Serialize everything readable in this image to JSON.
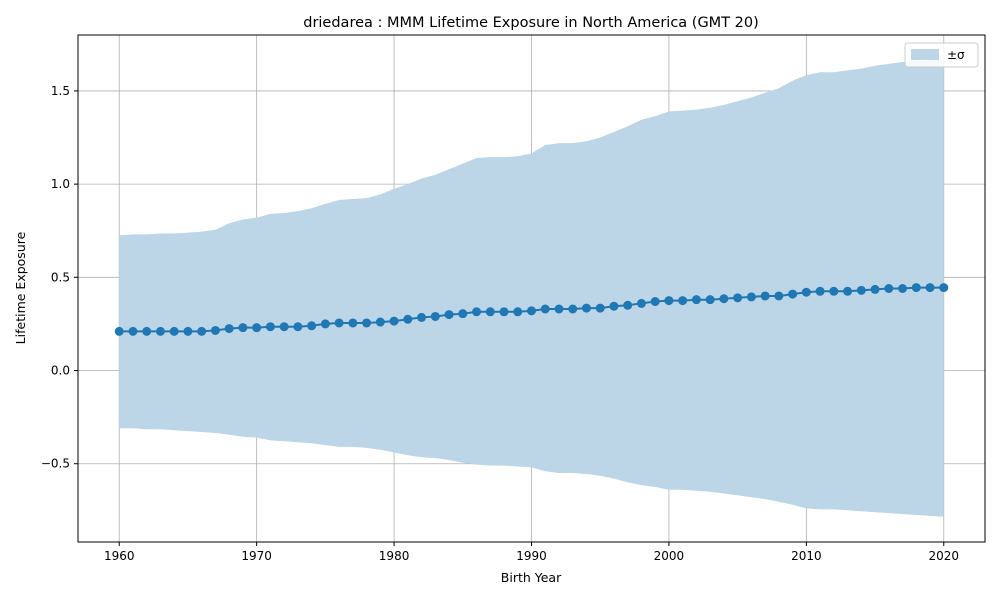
{
  "chart_data": {
    "type": "line",
    "title": "driedarea : MMM Lifetime Exposure in North America (GMT 20)",
    "xlabel": "Birth Year",
    "ylabel": "Lifetime Exposure",
    "xlim": [
      1957,
      2023
    ],
    "ylim": [
      -0.92,
      1.8
    ],
    "xticks": [
      1960,
      1970,
      1980,
      1990,
      2000,
      2010,
      2020
    ],
    "yticks": [
      -0.5,
      0.0,
      0.5,
      1.0,
      1.5
    ],
    "ytick_labels": [
      "−0.5",
      "0.0",
      "0.5",
      "1.0",
      "1.5"
    ],
    "grid": true,
    "legend_position": "top-right",
    "legend": [
      {
        "label": "±σ",
        "color": "#bcd6e8"
      }
    ],
    "colors": {
      "line": "#1f77b4",
      "band": "#bcd6e8",
      "grid": "#b0b0b0"
    },
    "series": [
      {
        "x": [
          1960,
          1961,
          1962,
          1963,
          1964,
          1965,
          1966,
          1967,
          1968,
          1969,
          1970,
          1971,
          1972,
          1973,
          1974,
          1975,
          1976,
          1977,
          1978,
          1979,
          1980,
          1981,
          1982,
          1983,
          1984,
          1985,
          1986,
          1987,
          1988,
          1989,
          1990,
          1991,
          1992,
          1993,
          1994,
          1995,
          1996,
          1997,
          1998,
          1999,
          2000,
          2001,
          2002,
          2003,
          2004,
          2005,
          2006,
          2007,
          2008,
          2009,
          2010,
          2011,
          2012,
          2013,
          2014,
          2015,
          2016,
          2017,
          2018,
          2019,
          2020
        ],
        "values": [
          0.21,
          0.21,
          0.21,
          0.21,
          0.21,
          0.21,
          0.21,
          0.215,
          0.225,
          0.23,
          0.23,
          0.235,
          0.235,
          0.235,
          0.24,
          0.25,
          0.255,
          0.255,
          0.255,
          0.26,
          0.265,
          0.275,
          0.285,
          0.29,
          0.3,
          0.305,
          0.315,
          0.315,
          0.315,
          0.315,
          0.32,
          0.33,
          0.33,
          0.33,
          0.335,
          0.335,
          0.345,
          0.35,
          0.36,
          0.37,
          0.375,
          0.375,
          0.38,
          0.38,
          0.385,
          0.39,
          0.395,
          0.4,
          0.4,
          0.41,
          0.42,
          0.425,
          0.425,
          0.425,
          0.43,
          0.435,
          0.44,
          0.44,
          0.445,
          0.445,
          0.445
        ]
      }
    ],
    "band": {
      "name": "±σ",
      "upper": [
        0.725,
        0.73,
        0.73,
        0.735,
        0.735,
        0.74,
        0.745,
        0.755,
        0.79,
        0.81,
        0.82,
        0.84,
        0.845,
        0.855,
        0.87,
        0.895,
        0.915,
        0.92,
        0.925,
        0.945,
        0.975,
        1.0,
        1.03,
        1.05,
        1.08,
        1.11,
        1.14,
        1.145,
        1.145,
        1.15,
        1.165,
        1.21,
        1.22,
        1.22,
        1.23,
        1.25,
        1.28,
        1.31,
        1.345,
        1.365,
        1.39,
        1.395,
        1.4,
        1.41,
        1.425,
        1.445,
        1.465,
        1.49,
        1.515,
        1.555,
        1.585,
        1.6,
        1.6,
        1.61,
        1.62,
        1.635,
        1.645,
        1.655,
        1.66,
        1.665,
        1.67
      ],
      "lower": [
        -0.31,
        -0.31,
        -0.315,
        -0.315,
        -0.32,
        -0.325,
        -0.33,
        -0.335,
        -0.345,
        -0.355,
        -0.36,
        -0.375,
        -0.38,
        -0.385,
        -0.39,
        -0.4,
        -0.41,
        -0.41,
        -0.415,
        -0.425,
        -0.44,
        -0.455,
        -0.465,
        -0.47,
        -0.48,
        -0.495,
        -0.505,
        -0.51,
        -0.51,
        -0.515,
        -0.52,
        -0.54,
        -0.55,
        -0.55,
        -0.555,
        -0.565,
        -0.58,
        -0.6,
        -0.615,
        -0.625,
        -0.64,
        -0.64,
        -0.645,
        -0.65,
        -0.66,
        -0.67,
        -0.68,
        -0.69,
        -0.705,
        -0.72,
        -0.74,
        -0.745,
        -0.745,
        -0.75,
        -0.755,
        -0.76,
        -0.765,
        -0.77,
        -0.775,
        -0.78,
        -0.785
      ]
    }
  }
}
